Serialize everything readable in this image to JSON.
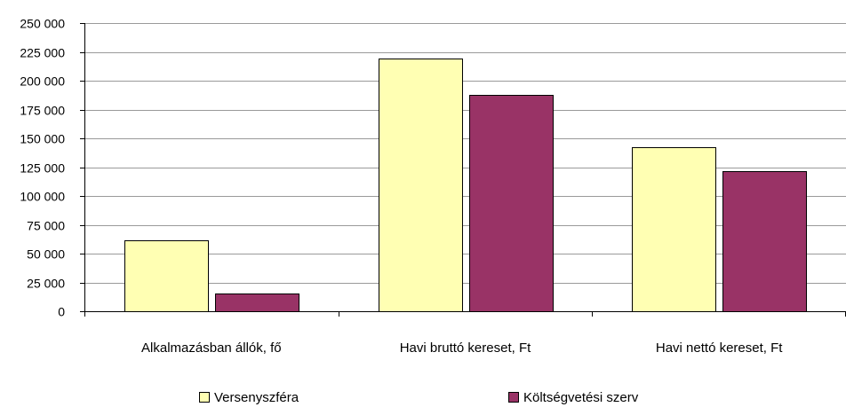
{
  "chart_data": {
    "type": "bar",
    "categories": [
      "Alkalmazásban állók, fő",
      "Havi bruttó kereset, Ft",
      "Havi nettó kereset, Ft"
    ],
    "series": [
      {
        "name": "Versenyszféra",
        "color": "#FFFFB3",
        "values": [
          61500,
          219500,
          142500
        ]
      },
      {
        "name": "Költségvetési szerv",
        "color": "#993366",
        "values": [
          15500,
          187500,
          121500
        ]
      }
    ],
    "ylim": [
      0,
      250000
    ],
    "yticks": [
      0,
      25000,
      50000,
      75000,
      100000,
      125000,
      150000,
      175000,
      200000,
      225000,
      250000
    ],
    "ytick_labels": [
      "0",
      "25 000",
      "50 000",
      "75 000",
      "100 000",
      "125 000",
      "150 000",
      "175 000",
      "200 000",
      "225 000",
      "250 000"
    ],
    "grid": true,
    "legend_position": "bottom",
    "title": "",
    "xlabel": "",
    "ylabel": ""
  }
}
